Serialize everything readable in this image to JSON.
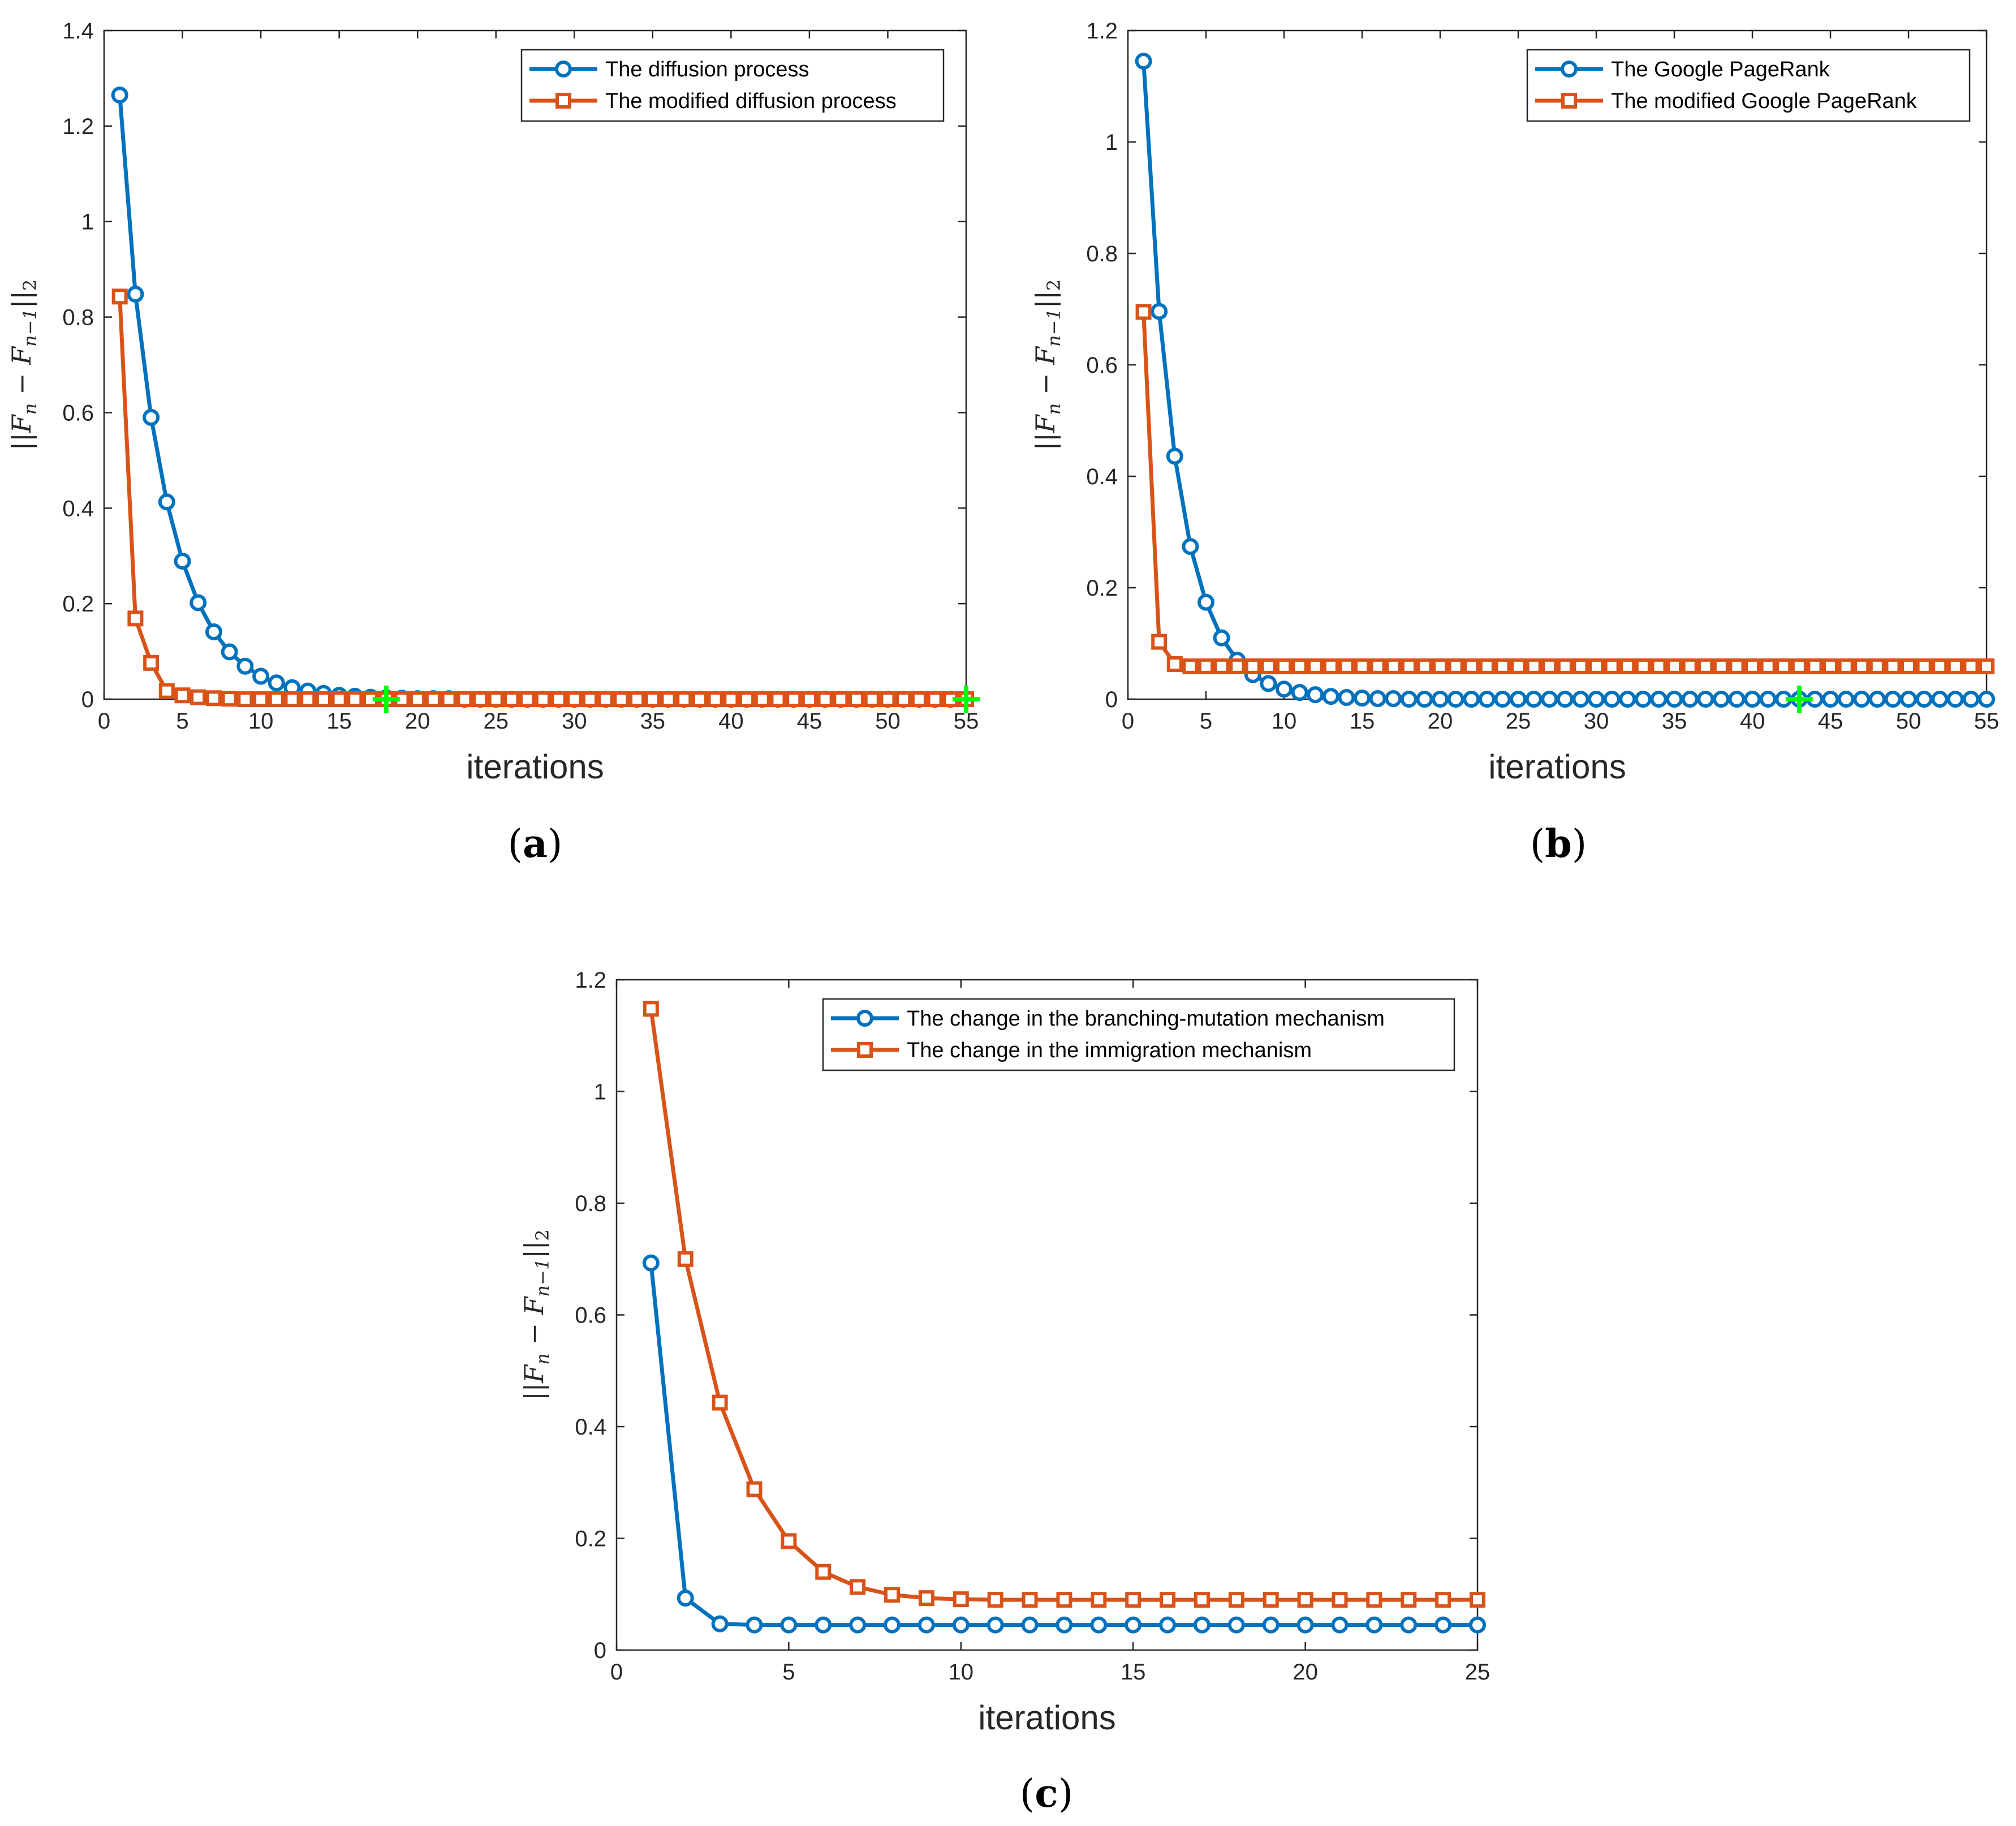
{
  "colors": {
    "blue": "#0072BD",
    "orange": "#D95319",
    "green": "#00FF00",
    "axis": "#262626"
  },
  "chart_data": [
    {
      "id": "a",
      "type": "line",
      "caption_open": "(",
      "caption_letter": "a",
      "caption_close": ")",
      "xlabel": "iterations",
      "ylabel": "||F_n − F_{n−1}||_2",
      "ylabel_parts": {
        "open": "||",
        "f1": "F",
        "s1": "n",
        "minus": " − ",
        "f2": "F",
        "s2": "n−1",
        "close": "||",
        "s3": "2"
      },
      "xlim": [
        0,
        55
      ],
      "ylim": [
        0,
        1.4
      ],
      "xticks": [
        0,
        5,
        10,
        15,
        20,
        25,
        30,
        35,
        40,
        45,
        50,
        55
      ],
      "yticks": [
        0,
        0.2,
        0.4,
        0.6,
        0.8,
        1,
        1.2,
        1.4
      ],
      "xtick_labels": [
        "0",
        "5",
        "10",
        "15",
        "20",
        "25",
        "30",
        "35",
        "40",
        "45",
        "50",
        "55"
      ],
      "ytick_labels": [
        "0",
        "0.2",
        "0.4",
        "0.6",
        "0.8",
        "1",
        "1.2",
        "1.4"
      ],
      "legend_position": "top-right",
      "series": [
        {
          "name": "The diffusion process",
          "marker": "circle",
          "color": "#0072BD",
          "x": [
            1,
            2,
            3,
            4,
            5,
            6,
            7,
            8,
            9,
            10,
            11,
            12,
            13,
            14,
            15,
            16,
            17,
            18,
            19,
            20,
            21,
            22,
            23,
            24,
            25,
            26,
            27,
            28,
            29,
            30,
            31,
            32,
            33,
            34,
            35,
            36,
            37,
            38,
            39,
            40,
            41,
            42,
            43,
            44,
            45,
            46,
            47,
            48,
            49,
            50,
            51,
            52,
            53,
            54,
            55
          ],
          "y": [
            1.265,
            0.848,
            0.59,
            0.413,
            0.289,
            0.202,
            0.141,
            0.099,
            0.069,
            0.048,
            0.034,
            0.024,
            0.017,
            0.012,
            0.008,
            0.006,
            0.004,
            0.003,
            0.002,
            0.001,
            0.001,
            0.001,
            0,
            0,
            0,
            0,
            0,
            0,
            0,
            0,
            0,
            0,
            0,
            0,
            0,
            0,
            0,
            0,
            0,
            0,
            0,
            0,
            0,
            0,
            0,
            0,
            0,
            0,
            0,
            0,
            0,
            0,
            0,
            0,
            0
          ]
        },
        {
          "name": "The modified diffusion process",
          "marker": "square",
          "color": "#D95319",
          "x": [
            1,
            2,
            3,
            4,
            5,
            6,
            7,
            8,
            9,
            10,
            11,
            12,
            13,
            14,
            15,
            16,
            17,
            18,
            19,
            20,
            21,
            22,
            23,
            24,
            25,
            26,
            27,
            28,
            29,
            30,
            31,
            32,
            33,
            34,
            35,
            36,
            37,
            38,
            39,
            40,
            41,
            42,
            43,
            44,
            45,
            46,
            47,
            48,
            49,
            50,
            51,
            52,
            53,
            54,
            55
          ],
          "y": [
            0.843,
            0.169,
            0.076,
            0.017,
            0.008,
            0.004,
            0.002,
            0.001,
            0,
            0,
            0,
            0,
            0,
            0,
            0,
            0,
            0,
            0,
            0,
            0,
            0,
            0,
            0,
            0,
            0,
            0,
            0,
            0,
            0,
            0,
            0,
            0,
            0,
            0,
            0,
            0,
            0,
            0,
            0,
            0,
            0,
            0,
            0,
            0,
            0,
            0,
            0,
            0,
            0,
            0,
            0,
            0,
            0,
            0,
            0
          ]
        }
      ],
      "highlight_points": [
        {
          "x": 18,
          "y": 0
        },
        {
          "x": 55,
          "y": 0
        }
      ]
    },
    {
      "id": "b",
      "type": "line",
      "caption_open": "(",
      "caption_letter": "b",
      "caption_close": ")",
      "xlabel": "iterations",
      "ylabel": "||F_n − F_{n−1}||_2",
      "ylabel_parts": {
        "open": "||",
        "f1": "F",
        "s1": "n",
        "minus": " − ",
        "f2": "F",
        "s2": "n−1",
        "close": "||",
        "s3": "2"
      },
      "xlim": [
        0,
        55
      ],
      "ylim": [
        0,
        1.2
      ],
      "xticks": [
        0,
        5,
        10,
        15,
        20,
        25,
        30,
        35,
        40,
        45,
        50,
        55
      ],
      "yticks": [
        0,
        0.2,
        0.4,
        0.6,
        0.8,
        1,
        1.2
      ],
      "xtick_labels": [
        "0",
        "5",
        "10",
        "15",
        "20",
        "25",
        "30",
        "35",
        "40",
        "45",
        "50",
        "55"
      ],
      "ytick_labels": [
        "0",
        "0.2",
        "0.4",
        "0.6",
        "0.8",
        "1",
        "1.2"
      ],
      "legend_position": "top-right",
      "series": [
        {
          "name": "The Google PageRank",
          "marker": "circle",
          "color": "#0072BD",
          "x": [
            1,
            2,
            3,
            4,
            5,
            6,
            7,
            8,
            9,
            10,
            11,
            12,
            13,
            14,
            15,
            16,
            17,
            18,
            19,
            20,
            21,
            22,
            23,
            24,
            25,
            26,
            27,
            28,
            29,
            30,
            31,
            32,
            33,
            34,
            35,
            36,
            37,
            38,
            39,
            40,
            41,
            42,
            43,
            44,
            45,
            46,
            47,
            48,
            49,
            50,
            51,
            52,
            53,
            54,
            55
          ],
          "y": [
            1.145,
            0.696,
            0.436,
            0.274,
            0.174,
            0.11,
            0.07,
            0.044,
            0.028,
            0.018,
            0.012,
            0.008,
            0.005,
            0.003,
            0.002,
            0.001,
            0.001,
            0,
            0,
            0,
            0,
            0,
            0,
            0,
            0,
            0,
            0,
            0,
            0,
            0,
            0,
            0,
            0,
            0,
            0,
            0,
            0,
            0,
            0,
            0,
            0,
            0,
            0,
            0,
            0,
            0,
            0,
            0,
            0,
            0,
            0,
            0,
            0,
            0,
            0
          ]
        },
        {
          "name": "The modified Google PageRank",
          "marker": "square",
          "color": "#D95319",
          "x": [
            1,
            2,
            3,
            4,
            5,
            6,
            7,
            8,
            9,
            10,
            11,
            12,
            13,
            14,
            15,
            16,
            17,
            18,
            19,
            20,
            21,
            22,
            23,
            24,
            25,
            26,
            27,
            28,
            29,
            30,
            31,
            32,
            33,
            34,
            35,
            36,
            37,
            38,
            39,
            40,
            41,
            42,
            43,
            44,
            45,
            46,
            47,
            48,
            49,
            50,
            51,
            52,
            53,
            54,
            55
          ],
          "y": [
            0.695,
            0.103,
            0.063,
            0.059,
            0.059,
            0.059,
            0.059,
            0.059,
            0.059,
            0.059,
            0.059,
            0.059,
            0.059,
            0.059,
            0.059,
            0.059,
            0.059,
            0.059,
            0.059,
            0.059,
            0.059,
            0.059,
            0.059,
            0.059,
            0.059,
            0.059,
            0.059,
            0.059,
            0.059,
            0.059,
            0.059,
            0.059,
            0.059,
            0.059,
            0.059,
            0.059,
            0.059,
            0.059,
            0.059,
            0.059,
            0.059,
            0.059,
            0.059,
            0.059,
            0.059,
            0.059,
            0.059,
            0.059,
            0.059,
            0.059,
            0.059,
            0.059,
            0.059,
            0.059,
            0.059
          ]
        }
      ],
      "highlight_points": [
        {
          "x": 43,
          "y": 0
        }
      ]
    },
    {
      "id": "c",
      "type": "line",
      "caption_open": "(",
      "caption_letter": "c",
      "caption_close": ")",
      "xlabel": "iterations",
      "ylabel": "||F_n − F_{n−1}||_2",
      "ylabel_parts": {
        "open": "||",
        "f1": "F",
        "s1": "n",
        "minus": " − ",
        "f2": "F",
        "s2": "n−1",
        "close": "||",
        "s3": "2"
      },
      "xlim": [
        0,
        25
      ],
      "ylim": [
        0,
        1.2
      ],
      "xticks": [
        0,
        5,
        10,
        15,
        20,
        25
      ],
      "yticks": [
        0,
        0.2,
        0.4,
        0.6,
        0.8,
        1,
        1.2
      ],
      "xtick_labels": [
        "0",
        "5",
        "10",
        "15",
        "20",
        "25"
      ],
      "ytick_labels": [
        "0",
        "0.2",
        "0.4",
        "0.6",
        "0.8",
        "1",
        "1.2"
      ],
      "legend_position": "top-right",
      "series": [
        {
          "name": "The change in the branching-mutation mechanism",
          "marker": "circle",
          "color": "#0072BD",
          "x": [
            1,
            2,
            3,
            4,
            5,
            6,
            7,
            8,
            9,
            10,
            11,
            12,
            13,
            14,
            15,
            16,
            17,
            18,
            19,
            20,
            21,
            22,
            23,
            24,
            25
          ],
          "y": [
            0.693,
            0.093,
            0.047,
            0.045,
            0.045,
            0.045,
            0.045,
            0.045,
            0.045,
            0.045,
            0.045,
            0.045,
            0.045,
            0.045,
            0.045,
            0.045,
            0.045,
            0.045,
            0.045,
            0.045,
            0.045,
            0.045,
            0.045,
            0.045,
            0.045
          ]
        },
        {
          "name": "The change in the immigration mechanism",
          "marker": "square",
          "color": "#D95319",
          "x": [
            1,
            2,
            3,
            4,
            5,
            6,
            7,
            8,
            9,
            10,
            11,
            12,
            13,
            14,
            15,
            16,
            17,
            18,
            19,
            20,
            21,
            22,
            23,
            24,
            25
          ],
          "y": [
            1.148,
            0.7,
            0.443,
            0.288,
            0.195,
            0.14,
            0.113,
            0.099,
            0.093,
            0.091,
            0.09,
            0.09,
            0.09,
            0.09,
            0.09,
            0.09,
            0.09,
            0.09,
            0.09,
            0.09,
            0.09,
            0.09,
            0.09,
            0.09,
            0.09
          ]
        }
      ],
      "highlight_points": []
    }
  ]
}
